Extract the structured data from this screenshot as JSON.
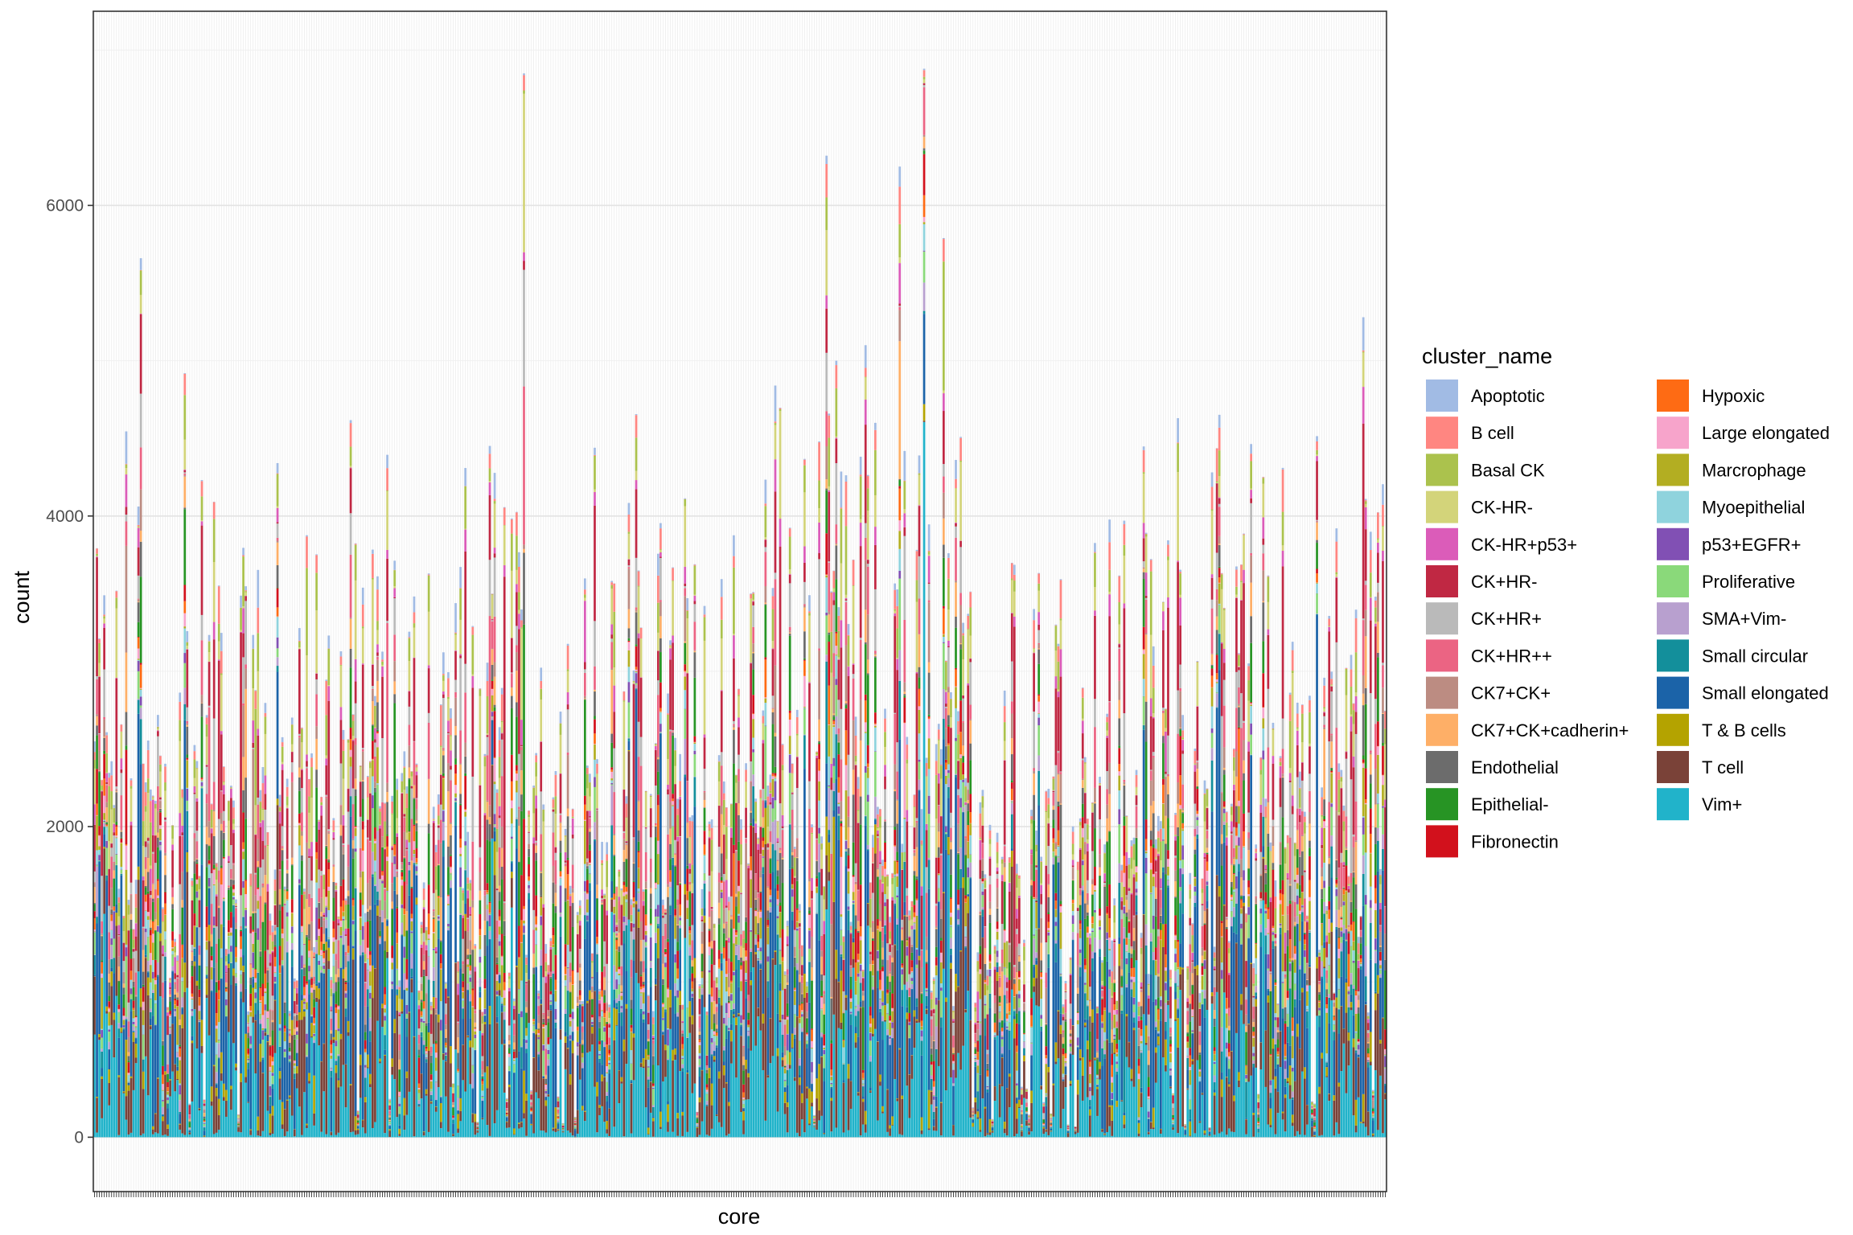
{
  "chart_data": {
    "type": "bar",
    "stacked": true,
    "title": "",
    "xlabel": "core",
    "ylabel": "count",
    "ylim": [
      -350,
      7250
    ],
    "yticks": [
      0,
      2000,
      4000,
      6000
    ],
    "ytick_labels": [
      "0",
      "2000",
      "4000",
      "6000"
    ],
    "grid": true,
    "legend_placement": "right",
    "legend_title": "cluster_name",
    "n_cores": 530,
    "series": [
      {
        "name": "Apoptotic",
        "color": "#a1bbe4"
      },
      {
        "name": "B cell",
        "color": "#ff8681"
      },
      {
        "name": "Basal CK",
        "color": "#abc24d"
      },
      {
        "name": "CK-HR-",
        "color": "#d3d47a"
      },
      {
        "name": "CK-HR+p53+",
        "color": "#db5cb9"
      },
      {
        "name": "CK+HR-",
        "color": "#c02843"
      },
      {
        "name": "CK+HR+",
        "color": "#bababa"
      },
      {
        "name": "CK+HR++",
        "color": "#eb6483"
      },
      {
        "name": "CK7+CK+",
        "color": "#bc8c82"
      },
      {
        "name": "CK7+CK+cadherin+",
        "color": "#feaf67"
      },
      {
        "name": "Endothelial",
        "color": "#6c6c6c"
      },
      {
        "name": "Epithelial-",
        "color": "#279424"
      },
      {
        "name": "Fibronectin",
        "color": "#d2111c"
      },
      {
        "name": "Hypoxic",
        "color": "#fe6b14"
      },
      {
        "name": "Large elongated",
        "color": "#f7a4cb"
      },
      {
        "name": "Marcrophage",
        "color": "#b3ae22"
      },
      {
        "name": "Myoepithelial",
        "color": "#8fd3dd"
      },
      {
        "name": "p53+EGFR+",
        "color": "#8150b4"
      },
      {
        "name": "Proliferative",
        "color": "#8ad97a"
      },
      {
        "name": "SMA+Vim-",
        "color": "#b8a0cf"
      },
      {
        "name": "Small circular",
        "color": "#138f9b"
      },
      {
        "name": "Small elongated",
        "color": "#1b63a8"
      },
      {
        "name": "T & B cells",
        "color": "#b4a300"
      },
      {
        "name": "T cell",
        "color": "#7a4238"
      },
      {
        "name": "Vim+",
        "color": "#21b3ca"
      }
    ],
    "tall_cores": [
      {
        "index": 19,
        "total": 5660
      },
      {
        "index": 37,
        "total": 4920
      },
      {
        "index": 176,
        "total": 6850
      },
      {
        "index": 279,
        "total": 4840
      },
      {
        "index": 300,
        "total": 6320
      },
      {
        "index": 304,
        "total": 5000
      },
      {
        "index": 316,
        "total": 5100
      },
      {
        "index": 330,
        "total": 6250
      },
      {
        "index": 340,
        "total": 6880
      },
      {
        "index": 348,
        "total": 5790
      },
      {
        "index": 444,
        "total": 4630
      },
      {
        "index": 487,
        "total": 4310
      },
      {
        "index": 520,
        "total": 5280
      }
    ]
  }
}
